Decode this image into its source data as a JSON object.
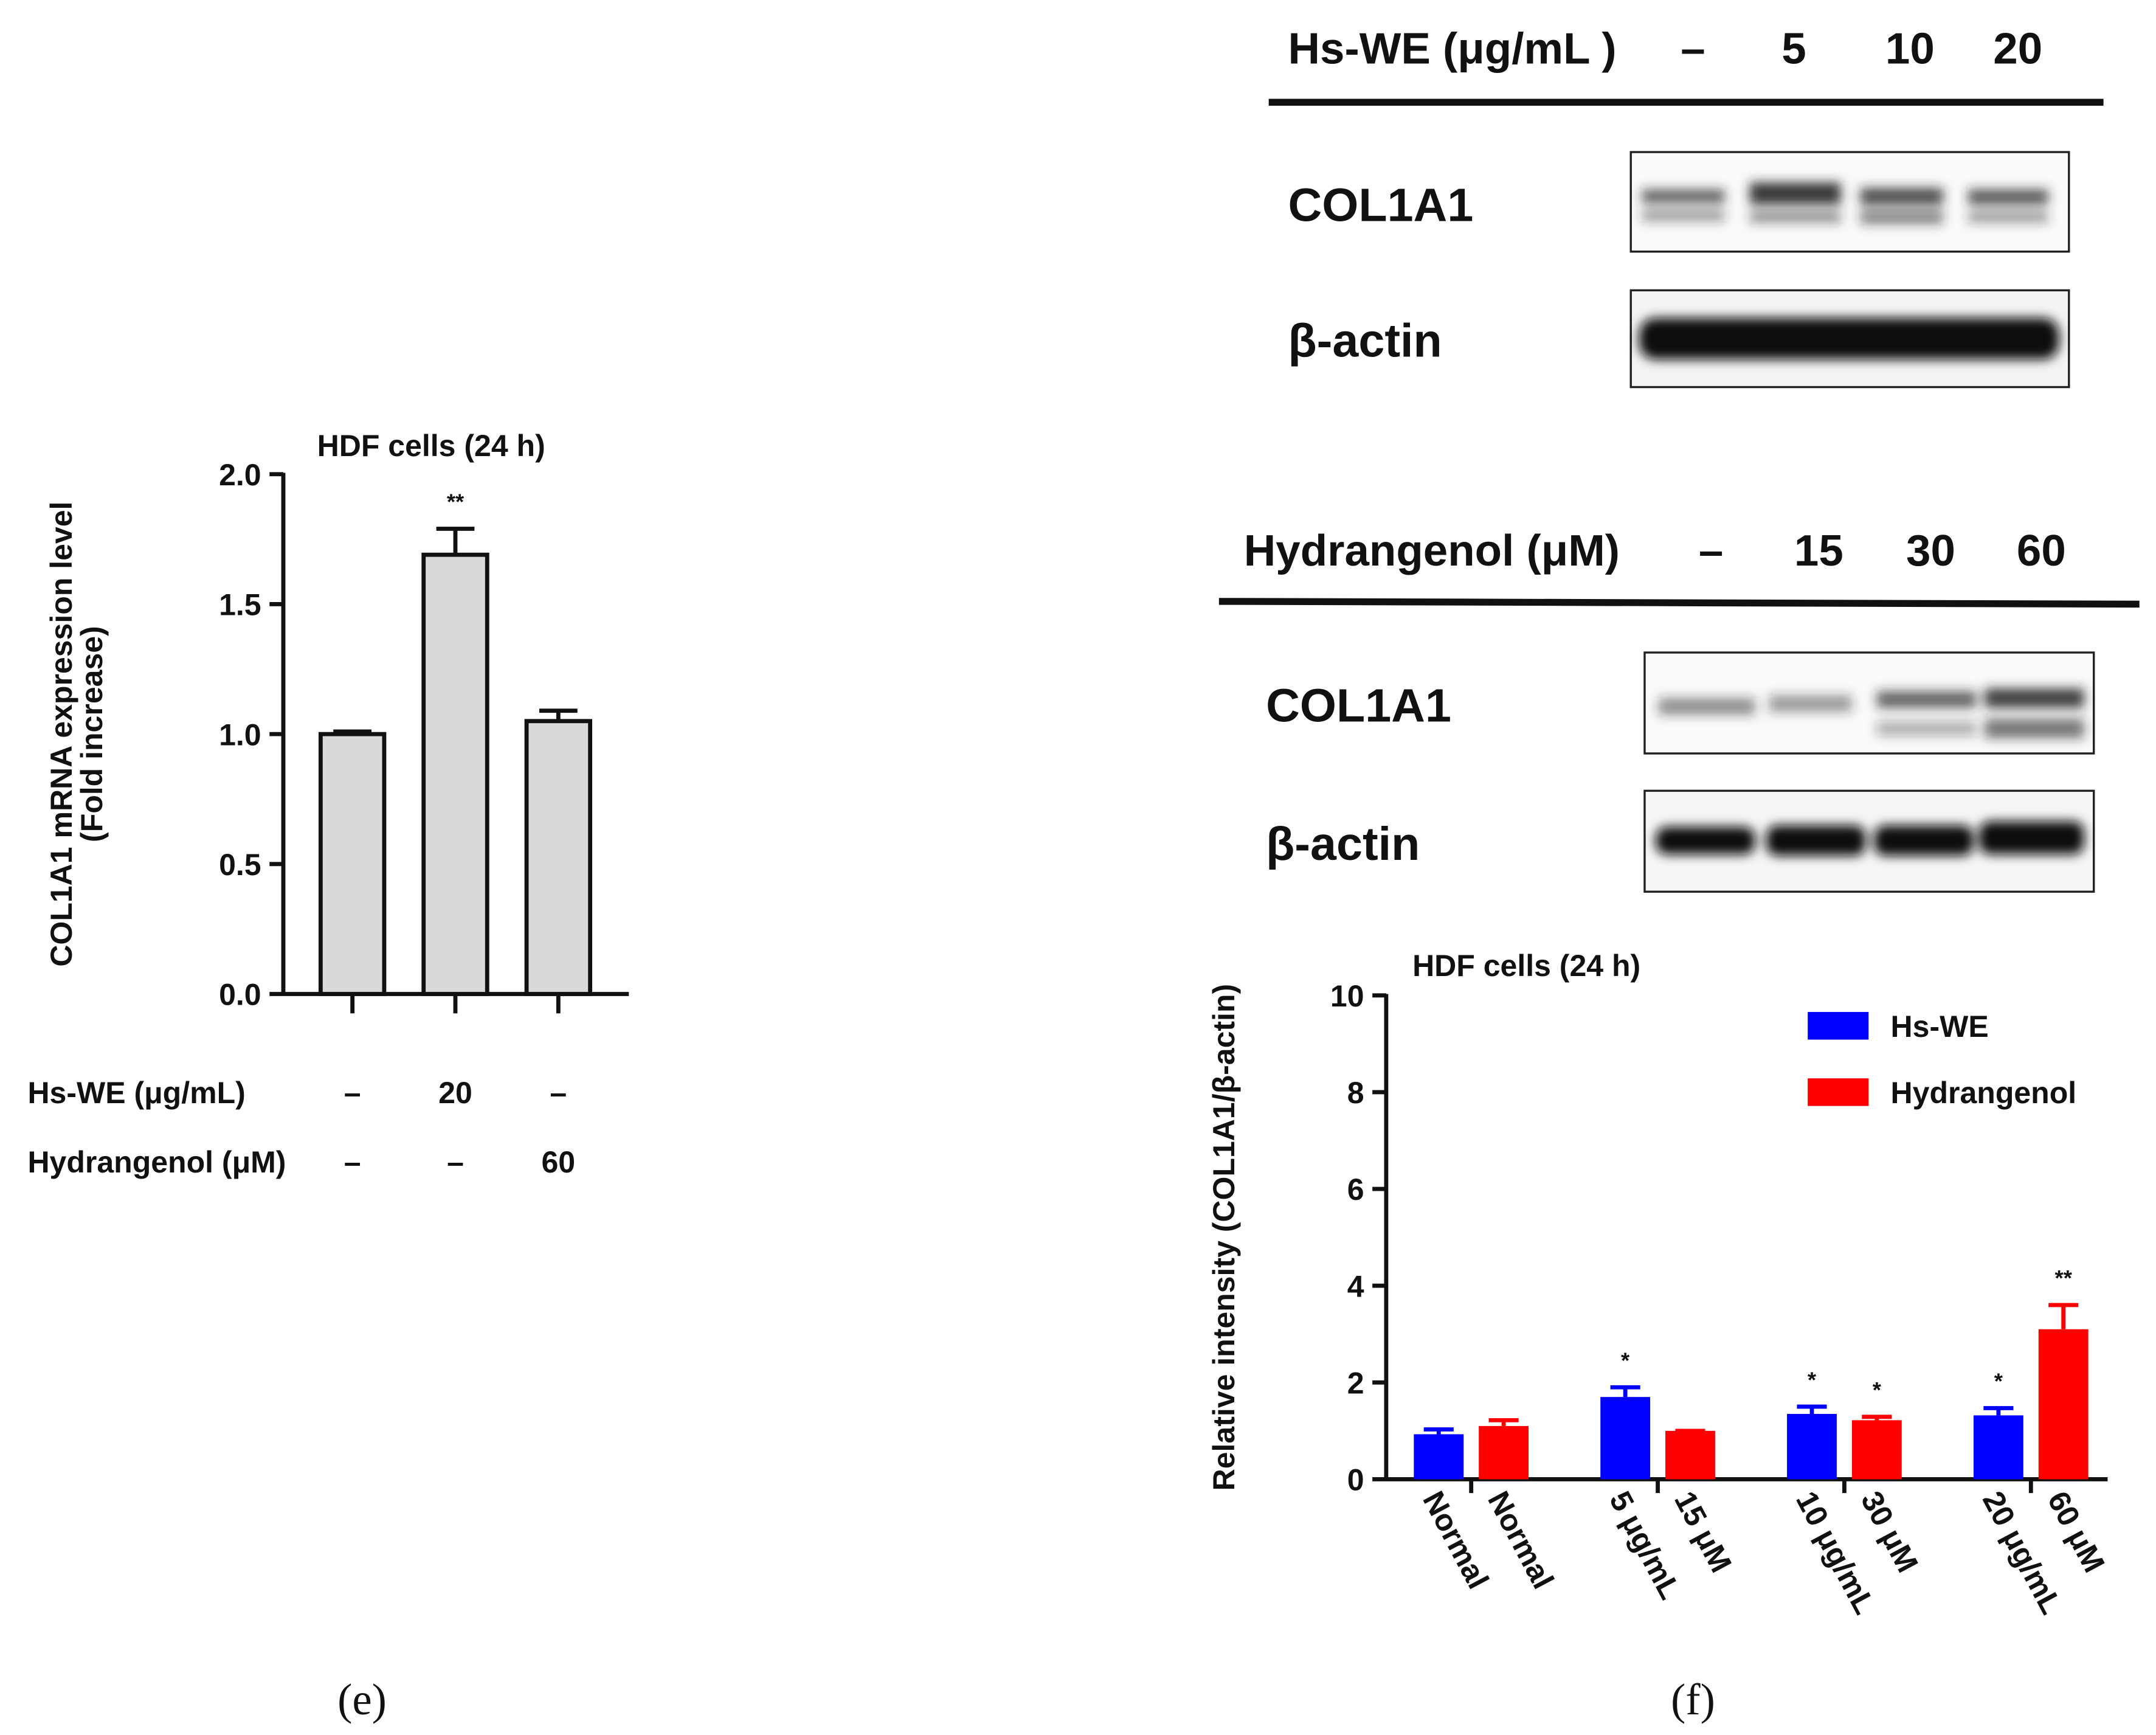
{
  "chart_data": [
    {
      "type": "bar",
      "title": "HDF cells (24 h)",
      "ylabel": [
        "COL1A1 mRNA expression level",
        "(Fold increase)"
      ],
      "categories": [
        null,
        null,
        null
      ],
      "values": [
        1.0,
        1.69,
        1.05
      ],
      "errors": [
        0.01,
        0.1,
        0.04
      ],
      "significance": [
        null,
        "**",
        null
      ],
      "color": "#d9d9d9",
      "ylim": [
        0,
        2
      ],
      "yticks": [
        {
          "value": 0,
          "label": "0.0"
        },
        {
          "value": 0.5,
          "label": "0.5"
        },
        {
          "value": 1,
          "label": "1.0"
        },
        {
          "value": 1.5,
          "label": "1.5"
        },
        {
          "value": 2,
          "label": "2.0"
        }
      ],
      "conditions": [
        {
          "label": "Hs-WE (μg/mL)",
          "values": [
            "–",
            "20",
            "–"
          ]
        },
        {
          "label": "Hydrangenol (μM)",
          "values": [
            "–",
            "–",
            "60"
          ]
        }
      ]
    },
    {
      "type": "bar",
      "title": "HDF cells (24 h)",
      "ylabel": "Relative intensity (COL1A1/β-actin)",
      "categories": [
        "Normal",
        "Normal",
        "5 μg/mL",
        "15 μM",
        "10 μg/mL",
        "30 μM",
        "20 μg/mL",
        "60 μM"
      ],
      "series": [
        {
          "name": "Hs-WE",
          "color": "#0000ff",
          "values": [
            0.93,
            null,
            1.7,
            null,
            1.35,
            null,
            1.32,
            null
          ],
          "errors": [
            0.1,
            null,
            0.2,
            null,
            0.15,
            null,
            0.15,
            null
          ],
          "significance": [
            null,
            null,
            "*",
            null,
            "*",
            null,
            "*",
            null
          ]
        },
        {
          "name": "Hydrangenol",
          "color": "#ff0000",
          "values": [
            null,
            1.1,
            null,
            1.0,
            null,
            1.22,
            null,
            3.1
          ],
          "errors": [
            null,
            0.12,
            null,
            0.0,
            null,
            0.07,
            null,
            0.5
          ],
          "significance": [
            null,
            null,
            null,
            null,
            null,
            "*",
            null,
            "**"
          ]
        }
      ],
      "ylim": [
        0,
        10
      ],
      "yticks": [
        0,
        2,
        4,
        6,
        8,
        10
      ],
      "legend": "upper right"
    }
  ],
  "blots": [
    {
      "header": "Hs-WE (μg/mL )",
      "lanes": [
        "–",
        "5",
        "10",
        "20"
      ],
      "rows": [
        "COL1A1",
        "β-actin"
      ]
    },
    {
      "header": "Hydrangenol (μM)",
      "lanes": [
        "–",
        "15",
        "30",
        "60"
      ],
      "rows": [
        "COL1A1",
        "β-actin"
      ]
    }
  ],
  "panels": [
    "(e)",
    "(f)"
  ]
}
